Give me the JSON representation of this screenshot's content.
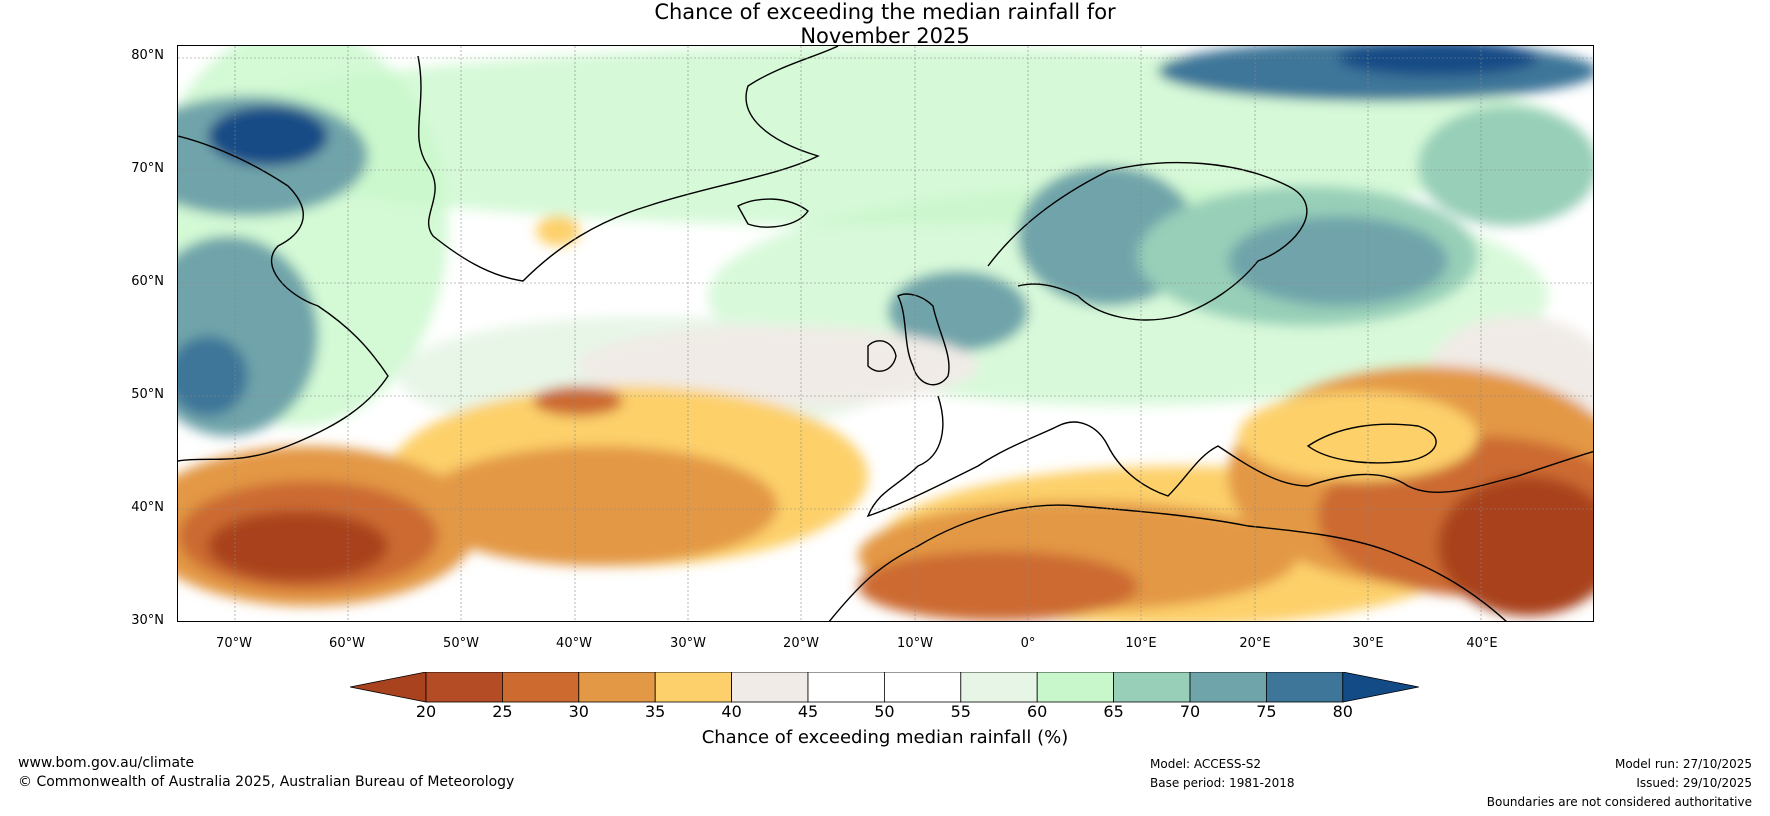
{
  "title": {
    "line1": "Chance of exceeding the median rainfall for",
    "line2": "November 2025"
  },
  "map": {
    "lat_labels": [
      "80°N",
      "70°N",
      "60°N",
      "50°N",
      "40°N",
      "30°N"
    ],
    "lon_labels": [
      "70°W",
      "60°W",
      "50°W",
      "40°W",
      "30°W",
      "20°W",
      "10°W",
      "0°",
      "10°E",
      "20°E",
      "30°E",
      "40°E"
    ],
    "extent": {
      "lon_min": -75,
      "lon_max": 50,
      "lat_min": 30,
      "lat_max": 81
    }
  },
  "colorbar": {
    "ticks": [
      "20",
      "25",
      "30",
      "35",
      "40",
      "45",
      "50",
      "55",
      "60",
      "65",
      "70",
      "75",
      "80"
    ],
    "colors": [
      "#a9431f",
      "#b44d25",
      "#cc6a30",
      "#e39845",
      "#fdd06b",
      "#f0ebe6",
      "#ffffff",
      "#ffffff",
      "#e6f5e6",
      "#c8f7cb",
      "#97cfb8",
      "#6fa4aa",
      "#3d7699",
      "#124b86"
    ],
    "title": "Chance of exceeding median rainfall (%)"
  },
  "footer": {
    "website": "www.bom.gov.au/climate",
    "copyright": "© Commonwealth of Australia 2025, Australian Bureau of Meteorology",
    "model": "Model: ACCESS-S2",
    "base_period": "Base period: 1981-2018",
    "model_run": "Model run: 27/10/2025",
    "issued": "Issued: 29/10/2025",
    "disclaimer": "Boundaries are not considered authoritative"
  }
}
